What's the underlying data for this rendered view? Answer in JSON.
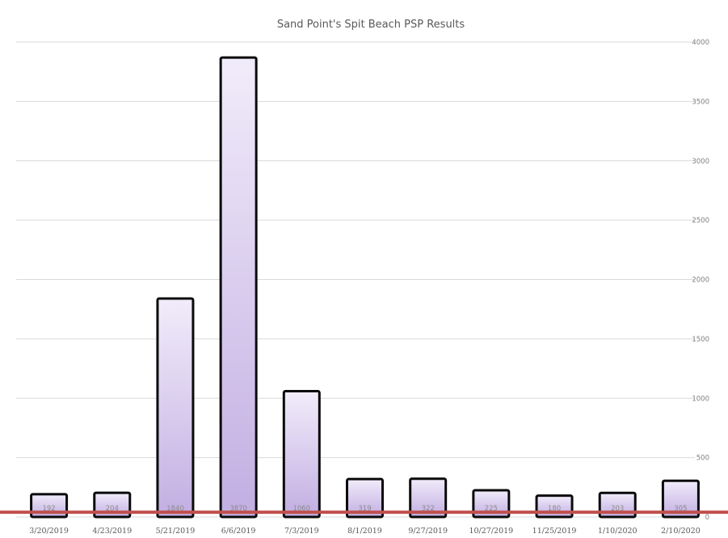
{
  "chart_data": {
    "type": "bar",
    "title": "Sand Point's Spit Beach PSP Results",
    "xlabel": "",
    "ylabel": "",
    "categories": [
      "3/20/2019",
      "4/23/2019",
      "5/21/2019",
      "6/6/2019",
      "7/3/2019",
      "8/1/2019",
      "9/27/2019",
      "10/27/2019",
      "11/25/2019",
      "1/10/2020",
      "2/10/2020"
    ],
    "values": [
      192,
      204,
      1840,
      3870,
      1060,
      319,
      322,
      225,
      180,
      203,
      305
    ],
    "ylim": [
      0,
      4000
    ],
    "yticks": [
      0,
      500,
      1000,
      1500,
      2000,
      2500,
      3000,
      3500,
      4000
    ],
    "y_axis_side": "right",
    "grid": true,
    "legend": "none",
    "threshold_line": 40,
    "colors": {
      "bar_fill_top": "#f1ecfa",
      "bar_fill_bottom": "#c2aee2",
      "bar_outline": "#0a0a0a",
      "threshold": "#c0504d",
      "grid": "#d9d9d9"
    }
  }
}
